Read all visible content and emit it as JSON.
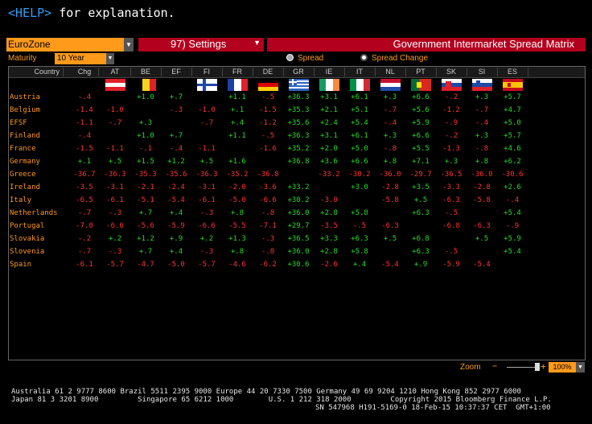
{
  "help": {
    "key": "<HELP>",
    "text": " for explanation."
  },
  "toolbar": {
    "market": "EuroZone",
    "settings_label": "97) Settings",
    "title": "Government Intermarket Spread Matrix"
  },
  "controls": {
    "maturity_label": "Maturity",
    "maturity_value": "10 Year",
    "radio_spread": "Spread",
    "radio_spread_change": "Spread Change",
    "selected_radio": "Spread Change"
  },
  "grid": {
    "headers": {
      "country": "Country",
      "chg": "Chg",
      "codes": [
        "AT",
        "BE",
        "EF",
        "FI",
        "FR",
        "DE",
        "GR",
        "IE",
        "IT",
        "NL",
        "PT",
        "SK",
        "SI",
        "ES"
      ]
    },
    "flags": [
      "at",
      "be",
      "ef",
      "fi",
      "fr",
      "de",
      "gr",
      "ie",
      "it",
      "nl",
      "pt",
      "sk",
      "si",
      "es"
    ],
    "colors": {
      "negative": "#ff3030",
      "positive": "#22dd22",
      "label": "#ff9a1a"
    },
    "rows": [
      {
        "country": "Austria",
        "chg": "-.4",
        "vals": [
          "",
          "+1.0",
          "+.7",
          "",
          "+1.1",
          "-.5",
          "+36.3",
          "+3.1",
          "+6.1",
          "+.3",
          "+6.6",
          "-.2",
          "+.3",
          "+5.7"
        ]
      },
      {
        "country": "Belgium",
        "chg": "-1.4",
        "vals": [
          "-1.0",
          "",
          "-.3",
          "-1.0",
          "+.1",
          "-1.5",
          "+35.3",
          "+2.1",
          "+5.1",
          "-.7",
          "+5.6",
          "-1.2",
          "-.7",
          "+4.7"
        ]
      },
      {
        "country": "EFSF",
        "chg": "-1.1",
        "vals": [
          "-.7",
          "+.3",
          "",
          "-.7",
          "+.4",
          "-1.2",
          "+35.6",
          "+2.4",
          "+5.4",
          "-.4",
          "+5.9",
          "-.9",
          "-.4",
          "+5.0"
        ]
      },
      {
        "country": "Finland",
        "chg": "-.4",
        "vals": [
          "",
          "+1.0",
          "+.7",
          "",
          "+1.1",
          "-.5",
          "+36.3",
          "+3.1",
          "+6.1",
          "+.3",
          "+6.6",
          "-.2",
          "+.3",
          "+5.7"
        ]
      },
      {
        "country": "France",
        "chg": "-1.5",
        "vals": [
          "-1.1",
          "-.1",
          "-.4",
          "-1.1",
          "",
          "-1.6",
          "+35.2",
          "+2.0",
          "+5.0",
          "-.8",
          "+5.5",
          "-1.3",
          "-.8",
          "+4.6"
        ]
      },
      {
        "country": "Germany",
        "chg": "+.1",
        "vals": [
          "+.5",
          "+1.5",
          "+1.2",
          "+.5",
          "+1.6",
          "",
          "+36.8",
          "+3.6",
          "+6.6",
          "+.8",
          "+7.1",
          "+.3",
          "+.8",
          "+6.2"
        ]
      },
      {
        "country": "Greece",
        "chg": "-36.7",
        "vals": [
          "-36.3",
          "-35.3",
          "-35.6",
          "-36.3",
          "-35.2",
          "-36.8",
          "",
          "-33.2",
          "-30.2",
          "-36.0",
          "-29.7",
          "-36.5",
          "-36.0",
          "-30.6"
        ]
      },
      {
        "country": "Ireland",
        "chg": "-3.5",
        "vals": [
          "-3.1",
          "-2.1",
          "-2.4",
          "-3.1",
          "-2.0",
          "-3.6",
          "+33.2",
          "",
          "+3.0",
          "-2.8",
          "+3.5",
          "-3.3",
          "-2.8",
          "+2.6"
        ]
      },
      {
        "country": "Italy",
        "chg": "-6.5",
        "vals": [
          "-6.1",
          "-5.1",
          "-5.4",
          "-6.1",
          "-5.0",
          "-6.6",
          "+30.2",
          "-3.0",
          "",
          "-5.8",
          "+.5",
          "-6.3",
          "-5.8",
          "-.4"
        ]
      },
      {
        "country": "Netherlands",
        "chg": "-.7",
        "vals": [
          "-.3",
          "+.7",
          "+.4",
          "-.3",
          "+.8",
          "-.8",
          "+36.0",
          "+2.8",
          "+5.8",
          "",
          "+6.3",
          "-.5",
          "",
          "+5.4"
        ]
      },
      {
        "country": "Portugal",
        "chg": "-7.0",
        "vals": [
          "-6.6",
          "-5.6",
          "-5.9",
          "-6.6",
          "-5.5",
          "-7.1",
          "+29.7",
          "-3.5",
          "-.5",
          "-6.3",
          "",
          "-6.8",
          "-6.3",
          "-.9"
        ]
      },
      {
        "country": "Slovakia",
        "chg": "-.2",
        "vals": [
          "+.2",
          "+1.2",
          "+.9",
          "+.2",
          "+1.3",
          "-.3",
          "+36.5",
          "+3.3",
          "+6.3",
          "+.5",
          "+6.8",
          "",
          "+.5",
          "+5.9"
        ]
      },
      {
        "country": "Slovenia",
        "chg": "-.7",
        "vals": [
          "-.3",
          "+.7",
          "+.4",
          "-.3",
          "+.8",
          "-.8",
          "+36.0",
          "+2.8",
          "+5.8",
          "",
          "+6.3",
          "-.5",
          "",
          "+5.4"
        ]
      },
      {
        "country": "Spain",
        "chg": "-6.1",
        "vals": [
          "-5.7",
          "-4.7",
          "-5.0",
          "-5.7",
          "-4.6",
          "-6.2",
          "+30.6",
          "-2.6",
          "+.4",
          "-5.4",
          "+.9",
          "-5.9",
          "-5.4",
          ""
        ]
      }
    ]
  },
  "zoom": {
    "label": "Zoom",
    "minus": "−",
    "plus": "+",
    "value": "100%",
    "level": 1.0
  },
  "footer": {
    "line1": "Australia 61 2 9777 8600 Brazil 5511 2395 9000 Europe 44 20 7330 7500 Germany 49 69 9204 1210 Hong Kong 852 2977 6000",
    "line2": "Japan 81 3 3201 8900         Singapore 65 6212 1000        U.S. 1 212 318 2000         Copyright 2015 Bloomberg Finance L.P.",
    "line3": "SN 547968 H191-5169-0 18-Feb-15 10:37:37 CET  GMT+1:00"
  }
}
